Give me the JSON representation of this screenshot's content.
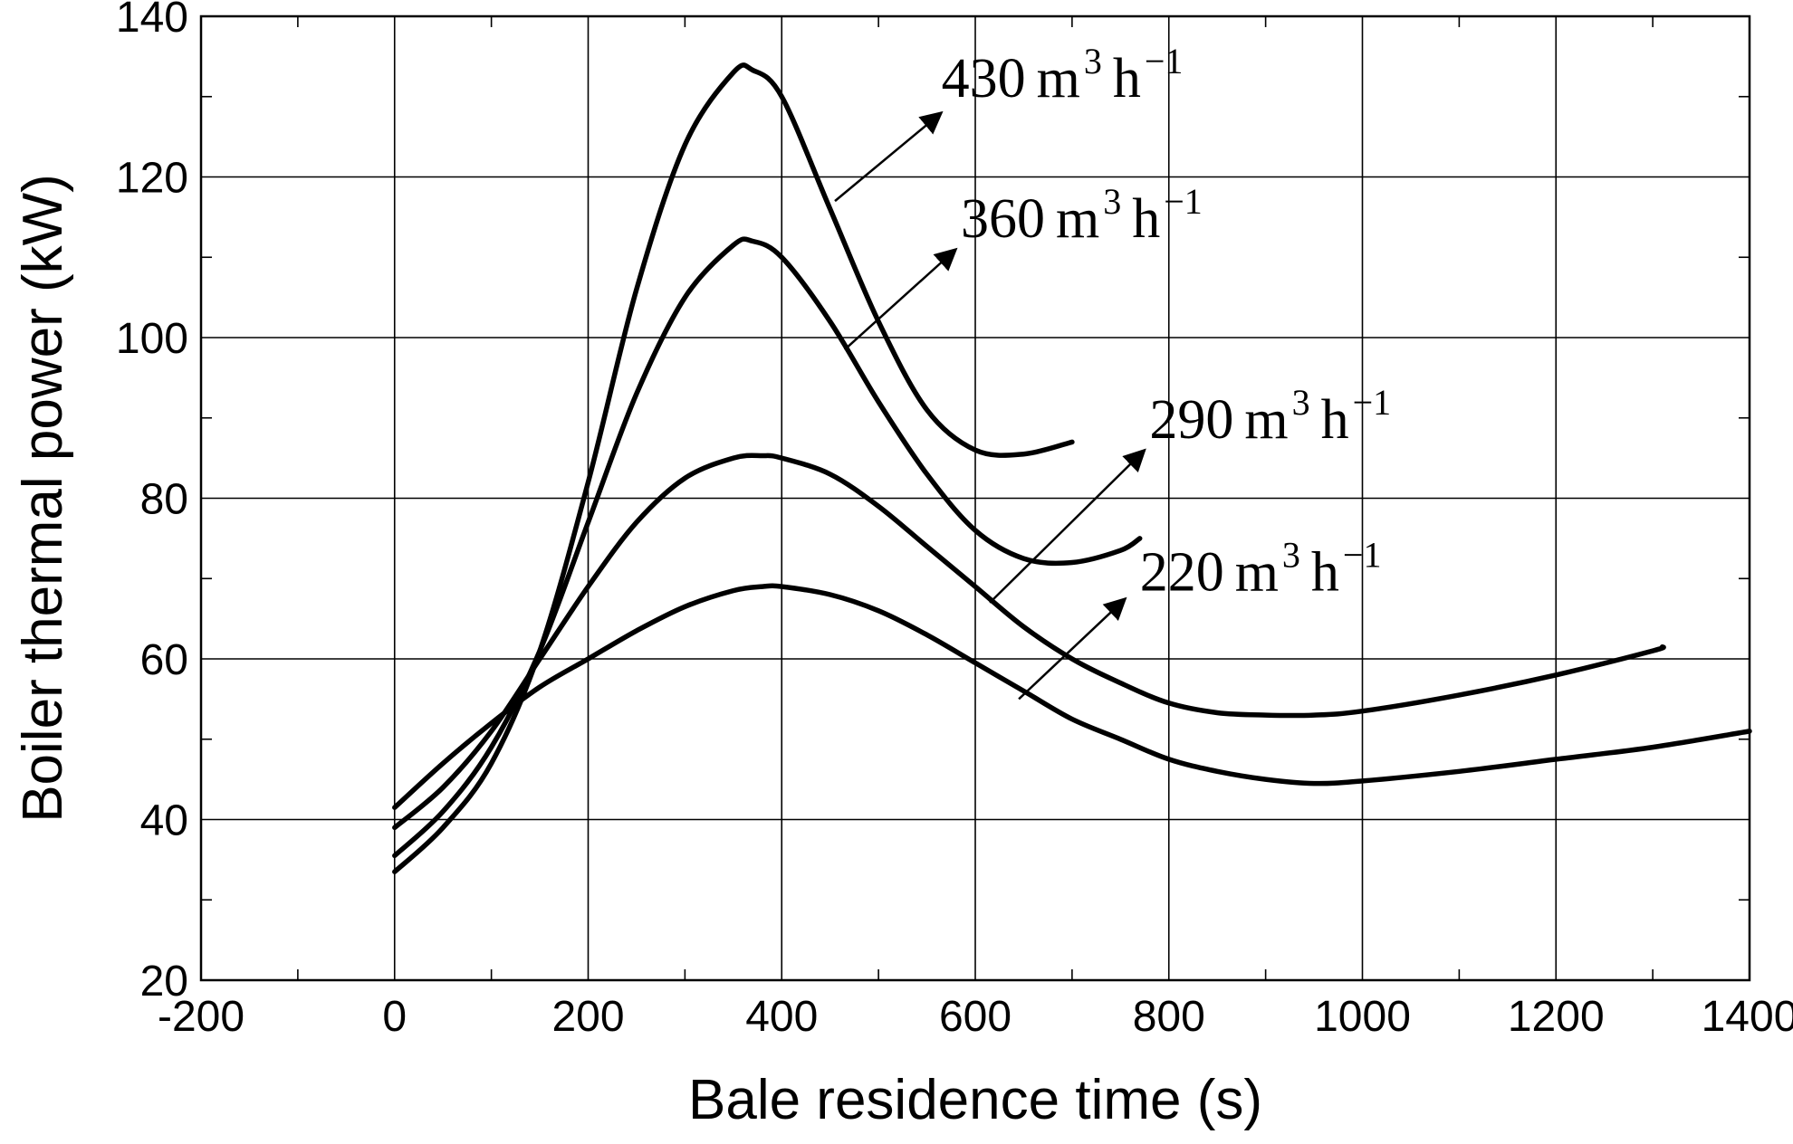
{
  "chart_data": {
    "type": "line",
    "xlabel": "Bale residence time (s)",
    "ylabel": "Boiler thermal power (kW)",
    "xlim": [
      -200,
      1400
    ],
    "ylim": [
      20,
      140
    ],
    "x_ticks": [
      -200,
      0,
      200,
      400,
      600,
      800,
      1000,
      1200,
      1400
    ],
    "y_ticks": [
      20,
      40,
      60,
      80,
      100,
      120,
      140
    ],
    "grid": true,
    "series": [
      {
        "name": "430 m3 h−1",
        "label": {
          "value": "430",
          "unit": "m",
          "unit_sup": "3",
          "rate": "h",
          "rate_sup": "−1"
        },
        "x": [
          0,
          50,
          100,
          150,
          200,
          250,
          300,
          350,
          370,
          400,
          450,
          500,
          550,
          600,
          650,
          700
        ],
        "y": [
          33.5,
          39,
          47,
          61,
          82,
          106,
          124,
          133,
          133.3,
          130,
          116,
          102,
          91,
          86,
          85.5,
          87
        ]
      },
      {
        "name": "360 m3 h−1",
        "label": {
          "value": "360",
          "unit": "m",
          "unit_sup": "3",
          "rate": "h",
          "rate_sup": "−1"
        },
        "x": [
          0,
          50,
          100,
          150,
          200,
          250,
          300,
          350,
          370,
          400,
          450,
          500,
          550,
          600,
          650,
          700,
          750,
          770
        ],
        "y": [
          35.5,
          41,
          49,
          61,
          77,
          93,
          105,
          111.5,
          112,
          110,
          102,
          92,
          83,
          76,
          72.5,
          72,
          73.5,
          75
        ]
      },
      {
        "name": "290 m3 h−1",
        "label": {
          "value": "290",
          "unit": "m",
          "unit_sup": "3",
          "rate": "h",
          "rate_sup": "−1"
        },
        "x": [
          0,
          50,
          100,
          150,
          200,
          250,
          300,
          350,
          380,
          400,
          450,
          500,
          550,
          600,
          650,
          700,
          750,
          800,
          850,
          900,
          950,
          1000,
          1100,
          1200,
          1300,
          1310
        ],
        "y": [
          39,
          44,
          51,
          60,
          69,
          77,
          82.5,
          85,
          85.3,
          85,
          83,
          79,
          74,
          69,
          64,
          60,
          57,
          54.5,
          53.3,
          53,
          53,
          53.5,
          55.5,
          58,
          61,
          61.5
        ]
      },
      {
        "name": "220 m3 h−1",
        "label": {
          "value": "220",
          "unit": "m",
          "unit_sup": "3",
          "rate": "h",
          "rate_sup": "−1"
        },
        "x": [
          0,
          50,
          100,
          150,
          200,
          250,
          300,
          350,
          380,
          400,
          450,
          500,
          550,
          600,
          650,
          700,
          750,
          800,
          850,
          900,
          950,
          1000,
          1100,
          1200,
          1300,
          1400
        ],
        "y": [
          41.5,
          47,
          52,
          56.5,
          60,
          63.5,
          66.5,
          68.5,
          69,
          69,
          68,
          66,
          63,
          59.5,
          56,
          52.5,
          50,
          47.5,
          46,
          45,
          44.5,
          44.8,
          46,
          47.5,
          49,
          51
        ]
      }
    ],
    "annotations": [
      {
        "series": 0,
        "arrow_from": [
          455,
          117
        ],
        "arrow_to": [
          565,
          128
        ],
        "text_at": [
          565,
          130
        ]
      },
      {
        "series": 1,
        "arrow_from": [
          465,
          98.5
        ],
        "arrow_to": [
          580,
          111
        ],
        "text_at": [
          585,
          112.5
        ]
      },
      {
        "series": 2,
        "arrow_from": [
          615,
          67
        ],
        "arrow_to": [
          775,
          86
        ],
        "text_at": [
          780,
          87.5
        ]
      },
      {
        "series": 3,
        "arrow_from": [
          645,
          55
        ],
        "arrow_to": [
          755,
          67.5
        ],
        "text_at": [
          770,
          68.5
        ]
      }
    ]
  }
}
